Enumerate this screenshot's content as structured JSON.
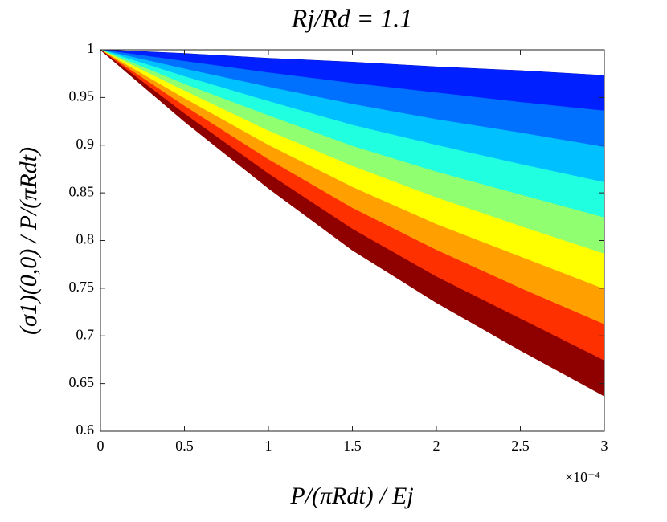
{
  "chart_data": {
    "type": "band-lines",
    "title": "Rj/Rd = 1.1",
    "y_label": "(σ1)(0,0) / P/(πRdt)",
    "x_label": "P/(πRdt) / Ej",
    "x_multiplier_label": "×10⁻⁴",
    "x": [
      0,
      0.5,
      1,
      1.5,
      2,
      2.5,
      3
    ],
    "series": [
      {
        "color": "#00008f",
        "values": [
          1,
          0.996,
          0.991,
          0.987,
          0.982,
          0.978,
          0.973
        ]
      },
      {
        "color": "#0020ff",
        "values": [
          1,
          0.988,
          0.976,
          0.965,
          0.955,
          0.945,
          0.936
        ]
      },
      {
        "color": "#0070ff",
        "values": [
          1,
          0.98,
          0.961,
          0.943,
          0.927,
          0.913,
          0.898
        ]
      },
      {
        "color": "#00c0ff",
        "values": [
          1,
          0.972,
          0.946,
          0.921,
          0.9,
          0.88,
          0.861
        ]
      },
      {
        "color": "#20ffe0",
        "values": [
          1,
          0.964,
          0.931,
          0.899,
          0.872,
          0.848,
          0.824
        ]
      },
      {
        "color": "#90ff70",
        "values": [
          1,
          0.957,
          0.915,
          0.878,
          0.845,
          0.815,
          0.786
        ]
      },
      {
        "color": "#ffff00",
        "values": [
          1,
          0.949,
          0.9,
          0.856,
          0.817,
          0.783,
          0.749
        ]
      },
      {
        "color": "#ffa000",
        "values": [
          1,
          0.941,
          0.885,
          0.834,
          0.79,
          0.75,
          0.712
        ]
      },
      {
        "color": "#ff3000",
        "values": [
          1,
          0.933,
          0.87,
          0.812,
          0.762,
          0.718,
          0.674
        ]
      },
      {
        "color": "#8f0000",
        "values": [
          1,
          0.925,
          0.855,
          0.79,
          0.735,
          0.685,
          0.637
        ]
      }
    ],
    "xlim": [
      0,
      3
    ],
    "xticks": [
      0,
      0.5,
      1,
      1.5,
      2,
      2.5,
      3
    ],
    "ylim": [
      0.6,
      1
    ],
    "yticks": [
      0.6,
      0.65,
      0.7,
      0.75,
      0.8,
      0.85,
      0.9,
      0.95,
      1
    ],
    "grid": false
  }
}
